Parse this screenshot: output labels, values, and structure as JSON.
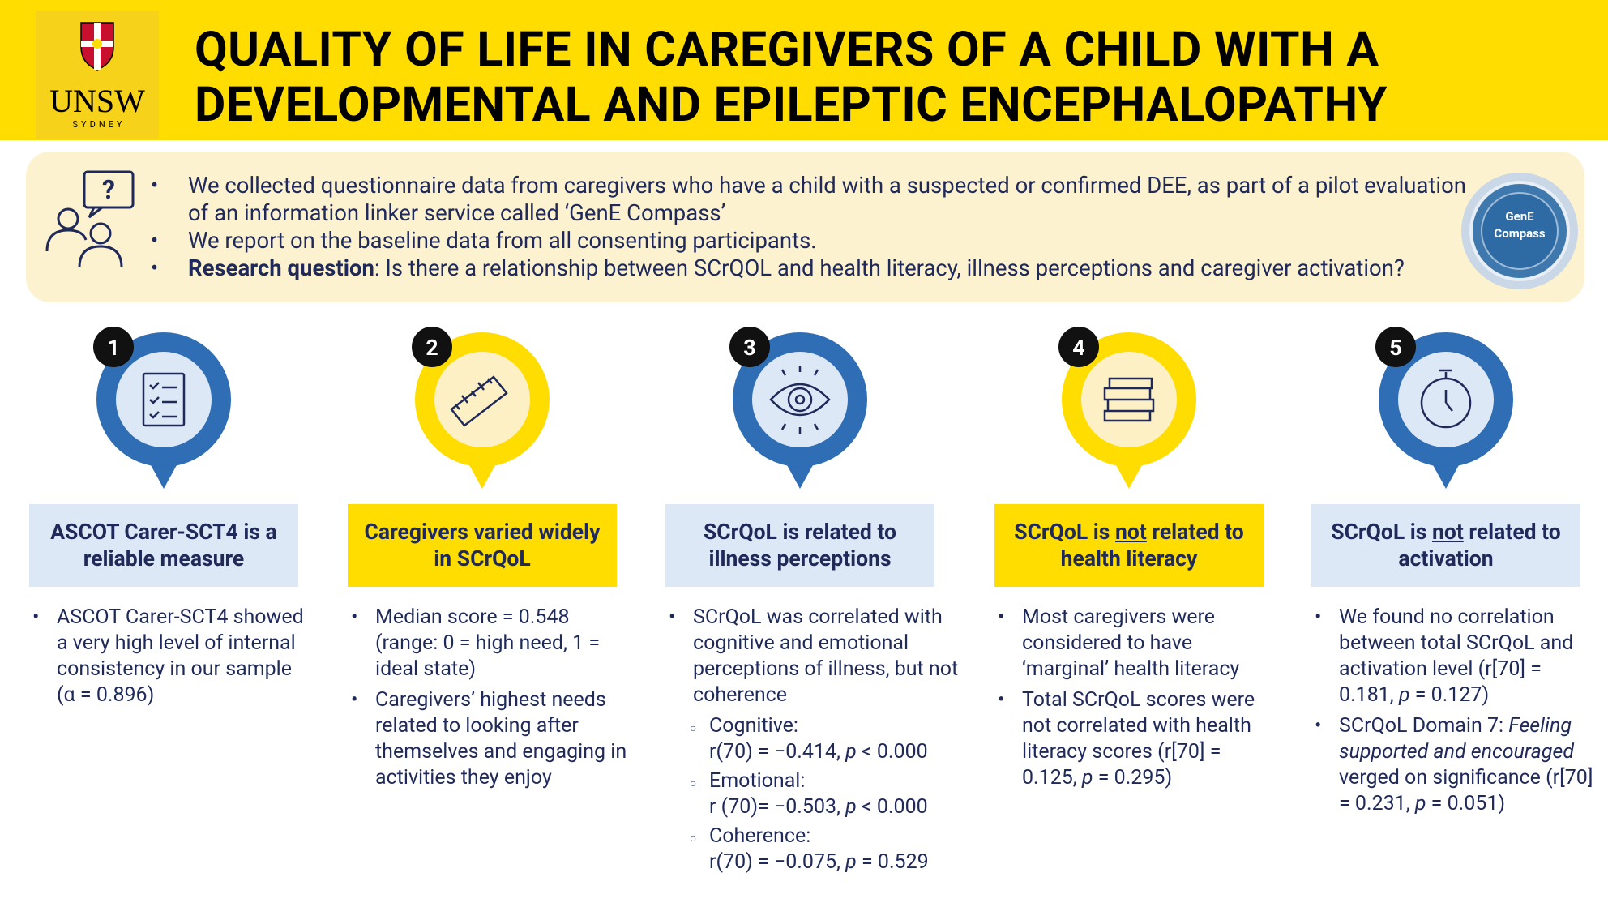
{
  "header": {
    "logo": "UNSW",
    "logo_sub": "SYDNEY",
    "title": [
      "QUALITY OF LIFE IN CAREGIVERS OF A CHILD WITH A",
      "DEVELOPMENTAL AND EPILEPTIC ENCEPHALOPATHY"
    ]
  },
  "intro": {
    "bullets": [
      [
        "We collected questionnaire data from caregivers who have a child with a suspected or confirmed DEE, as part of a pilot evaluation of an information linker service called ‘GenE Compass’"
      ],
      [
        "We report on the baseline data from all consenting participants."
      ],
      [
        "Research question",
        ": Is there a relationship between SCrQOL and health literacy, illness perceptions and caregiver activation?"
      ]
    ],
    "badge": [
      "GenE",
      "Compass"
    ]
  },
  "columns": [
    {
      "number": "1",
      "heading": [
        "ASCOT Carer-SCT4 is a reliable measure"
      ],
      "bullets": [
        [
          "ASCOT Carer-SCT4 showed a very high level of internal consistency in our sample (α = 0.896)"
        ]
      ]
    },
    {
      "number": "2",
      "heading": [
        "Caregivers varied widely in SCrQoL"
      ],
      "bullets": [
        [
          "Median score = 0.548 (range: 0 = high need, 1 = ideal state)"
        ],
        [
          "Caregivers’ highest needs related to looking after themselves and engaging in activities they enjoy"
        ]
      ]
    },
    {
      "number": "3",
      "heading": [
        "SCrQoL is related to illness perceptions"
      ],
      "bullets": [
        [
          "SCrQoL was correlated with cognitive and emotional perceptions of illness, but not coherence"
        ]
      ],
      "sub": [
        {
          "label": "Cognitive:",
          "stat": [
            "r(70) = −0.414, ",
            "p",
            " < 0.000"
          ]
        },
        {
          "label": "Emotional:",
          "stat": [
            "r (70)= −0.503, ",
            "p",
            " < 0.000"
          ]
        },
        {
          "label": "Coherence:",
          "stat": [
            "r(70) = −0.075, ",
            "p",
            " = 0.529"
          ]
        }
      ]
    },
    {
      "number": "4",
      "heading": [
        "SCrQoL is ",
        "not",
        " related to health literacy"
      ],
      "bullets": [
        [
          "Most caregivers were considered to have ‘marginal’ health literacy"
        ],
        [
          "Total SCrQoL scores were not correlated with health literacy scores (r[70] = 0.125, ",
          "p",
          " = 0.295)"
        ]
      ]
    },
    {
      "number": "5",
      "heading": [
        "SCrQoL is ",
        "not",
        " related to activation"
      ],
      "bullets": [
        [
          "We found no correlation between total SCrQoL and activation level (r[70] = 0.181, ",
          "p",
          " = 0.127)"
        ],
        [
          "SCrQoL Domain 7: ",
          "Feeling supported and encouraged",
          " verged on significance (r[70] = 0.231, ",
          "p",
          " = 0.051)"
        ]
      ]
    }
  ]
}
